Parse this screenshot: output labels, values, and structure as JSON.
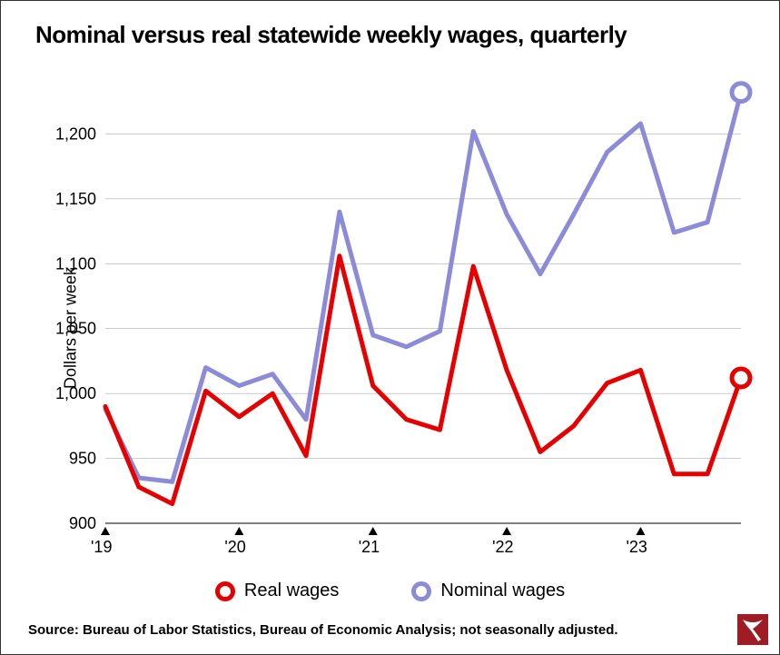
{
  "chart": {
    "type": "line",
    "title": "Nominal versus real statewide weekly wages, quarterly",
    "y_axis_label": "Dollars per week",
    "source_text": "Source: Bureau of Labor Statistics, Bureau of Economic Analysis; not seasonally adjusted.",
    "background_color": "#ffffff",
    "border_color": "#333333",
    "grid_color": "#999999",
    "grid_width": 0.5,
    "axis_color": "#000000",
    "title_fontsize": 26,
    "axis_label_fontsize": 18,
    "tick_label_fontsize": 18,
    "ylim": [
      900,
      1250
    ],
    "yticks": [
      900,
      950,
      1000,
      1050,
      1100,
      1150,
      1200
    ],
    "ytick_labels": [
      "900",
      "950",
      "1,000",
      "1,050",
      "1,100",
      "1,150",
      "1,200"
    ],
    "xlim": [
      0,
      19
    ],
    "xticks_major": [
      0,
      4,
      8,
      12,
      16
    ],
    "xtick_labels": [
      "'19",
      "'20",
      "'21",
      "'22",
      "'23"
    ],
    "line_width": 5,
    "marker_radius": 10,
    "marker_stroke_width": 5,
    "series": {
      "real": {
        "label": "Real wages",
        "color": "#e60000",
        "values": [
          990,
          928,
          915,
          1002,
          982,
          1000,
          952,
          1106,
          1006,
          980,
          972,
          1098,
          1018,
          955,
          975,
          1008,
          1018,
          938,
          938,
          1012
        ]
      },
      "nominal": {
        "label": "Nominal wages",
        "color": "#8b8bd9",
        "values": [
          988,
          935,
          932,
          1020,
          1006,
          1015,
          980,
          1140,
          1045,
          1036,
          1048,
          1202,
          1138,
          1092,
          1138,
          1186,
          1208,
          1124,
          1132,
          1232
        ]
      }
    },
    "legend": {
      "items": [
        {
          "key": "real",
          "label": "Real wages"
        },
        {
          "key": "nominal",
          "label": "Nominal wages"
        }
      ],
      "fontsize": 20
    },
    "logo": {
      "bg_color": "#a01c24",
      "fg_color": "#ffffff"
    }
  }
}
